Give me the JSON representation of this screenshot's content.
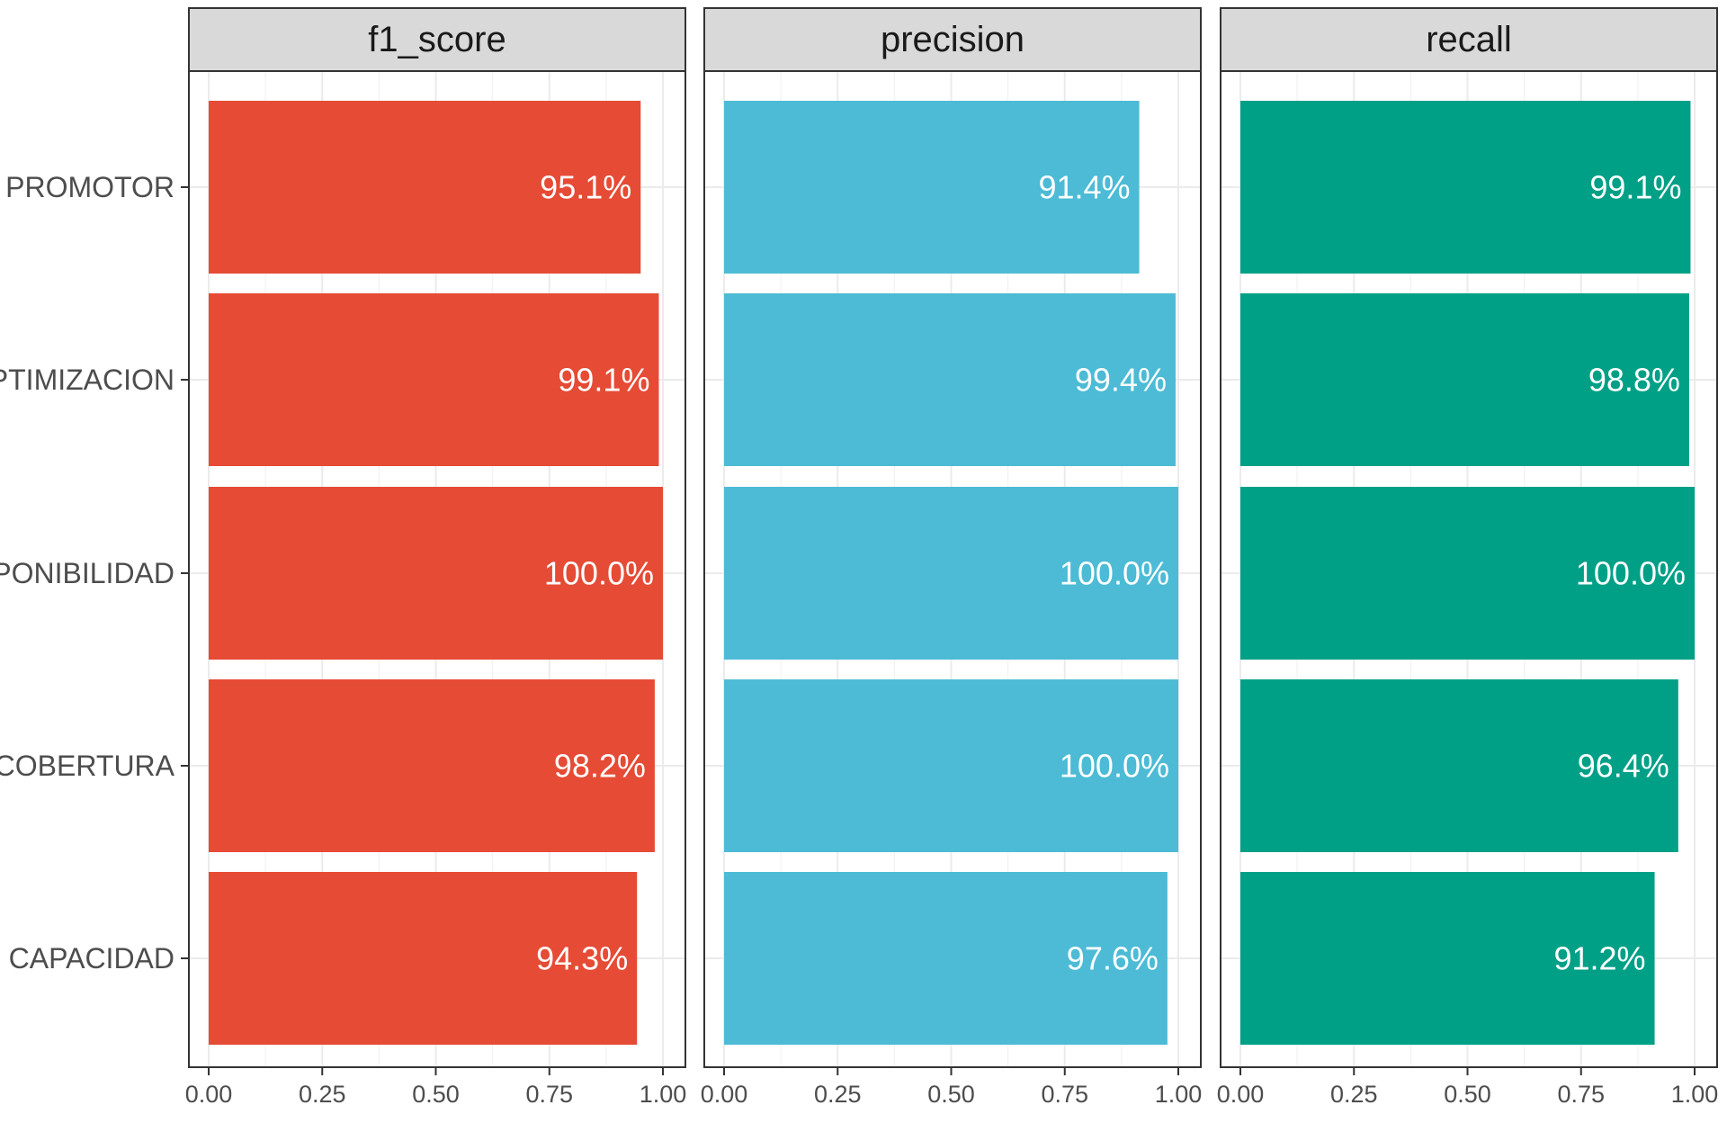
{
  "chart_data": {
    "type": "bar",
    "orientation": "horizontal",
    "facets": [
      "f1_score",
      "precision",
      "recall"
    ],
    "categories": [
      "PROMOTOR",
      "OPTIMIZACION",
      "DISPONIBILIDAD",
      "COBERTURA",
      "CAPACIDAD"
    ],
    "series": [
      {
        "facet": "f1_score",
        "color": "#E64B35",
        "values": [
          0.951,
          0.991,
          1.0,
          0.982,
          0.943
        ],
        "labels": [
          "95.1%",
          "99.1%",
          "100.0%",
          "98.2%",
          "94.3%"
        ]
      },
      {
        "facet": "precision",
        "color": "#4DBBD5",
        "values": [
          0.914,
          0.994,
          1.0,
          1.0,
          0.976
        ],
        "labels": [
          "91.4%",
          "99.4%",
          "100.0%",
          "100.0%",
          "97.6%"
        ]
      },
      {
        "facet": "recall",
        "color": "#00A087",
        "values": [
          0.991,
          0.988,
          1.0,
          0.964,
          0.912
        ],
        "labels": [
          "99.1%",
          "98.8%",
          "100.0%",
          "96.4%",
          "91.2%"
        ]
      }
    ],
    "x_ticks": [
      0,
      0.25,
      0.5,
      0.75,
      1.0
    ],
    "x_tick_labels": [
      "0.00",
      "0.25",
      "0.50",
      "0.75",
      "1.00"
    ],
    "xlim": [
      0,
      1.0
    ],
    "title": "",
    "xlabel": "",
    "ylabel": "",
    "grid": true,
    "legend": "none"
  }
}
